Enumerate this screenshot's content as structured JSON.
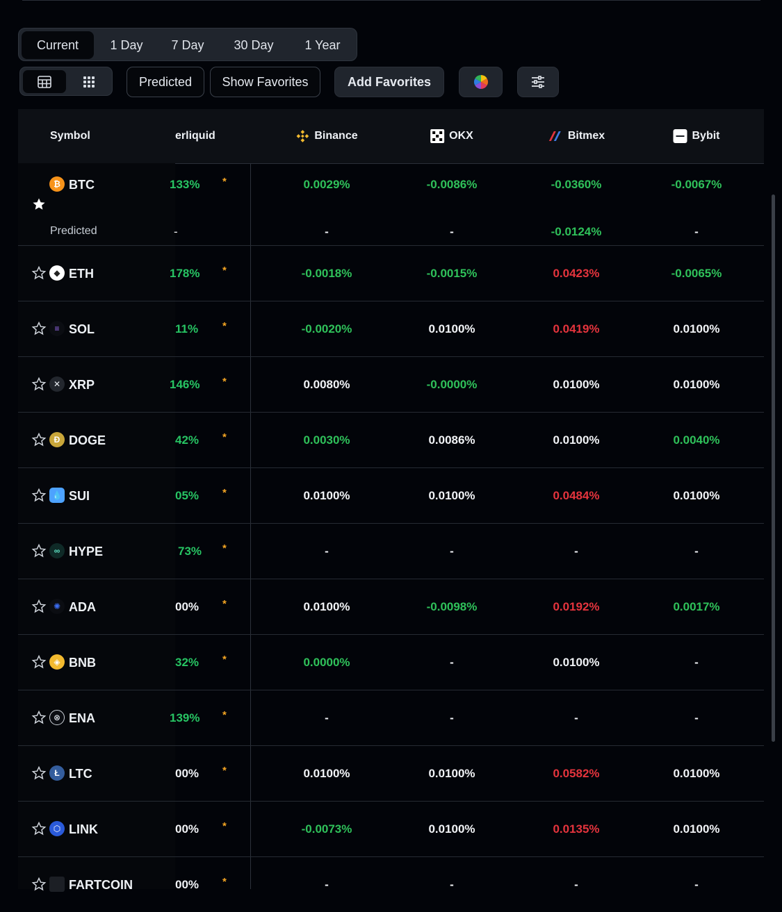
{
  "period_tabs": [
    "Current",
    "1 Day",
    "7 Day",
    "30 Day",
    "1 Year"
  ],
  "toolbar": {
    "predicted": "Predicted",
    "show_favorites": "Show Favorites",
    "add_favorites": "Add Favorites"
  },
  "table": {
    "symbol_header": "Symbol",
    "clipped_header": "erliquid",
    "exchanges": [
      "Binance",
      "OKX",
      "Bitmex",
      "Bybit"
    ],
    "predicted_label": "Predicted",
    "rows": [
      {
        "symbol": "BTC",
        "hl": "133%",
        "binance": "0.0029%",
        "okx": "-0.0086%",
        "bitmex": "-0.0360%",
        "bybit": "-0.0067%",
        "pred": {
          "hl": "-",
          "binance": "-",
          "okx": "-",
          "bitmex": "-0.0124%",
          "bybit": "-"
        }
      },
      {
        "symbol": "ETH",
        "hl": "178%",
        "binance": "-0.0018%",
        "okx": "-0.0015%",
        "bitmex": "0.0423%",
        "bybit": "-0.0065%"
      },
      {
        "symbol": "SOL",
        "hl": "11%",
        "binance": "-0.0020%",
        "okx": "0.0100%",
        "bitmex": "0.0419%",
        "bybit": "0.0100%"
      },
      {
        "symbol": "XRP",
        "hl": "146%",
        "binance": "0.0080%",
        "okx": "-0.0000%",
        "bitmex": "0.0100%",
        "bybit": "0.0100%"
      },
      {
        "symbol": "DOGE",
        "hl": "42%",
        "binance": "0.0030%",
        "okx": "0.0086%",
        "bitmex": "0.0100%",
        "bybit": "0.0040%"
      },
      {
        "symbol": "SUI",
        "hl": "05%",
        "binance": "0.0100%",
        "okx": "0.0100%",
        "bitmex": "0.0484%",
        "bybit": "0.0100%"
      },
      {
        "symbol": "HYPE",
        "hl": "73%",
        "binance": "-",
        "okx": "-",
        "bitmex": "-",
        "bybit": "-"
      },
      {
        "symbol": "ADA",
        "hl": "00%",
        "binance": "0.0100%",
        "okx": "-0.0098%",
        "bitmex": "0.0192%",
        "bybit": "0.0017%"
      },
      {
        "symbol": "BNB",
        "hl": "32%",
        "binance": "0.0000%",
        "okx": "-",
        "bitmex": "0.0100%",
        "bybit": "-"
      },
      {
        "symbol": "ENA",
        "hl": "139%",
        "binance": "-",
        "okx": "-",
        "bitmex": "-",
        "bybit": "-"
      },
      {
        "symbol": "LTC",
        "hl": "00%",
        "binance": "0.0100%",
        "okx": "0.0100%",
        "bitmex": "0.0582%",
        "bybit": "0.0100%"
      },
      {
        "symbol": "LINK",
        "hl": "00%",
        "binance": "-0.0073%",
        "okx": "0.0100%",
        "bitmex": "0.0135%",
        "bybit": "0.0100%"
      },
      {
        "symbol": "FARTCOIN",
        "hl": "00%",
        "binance": "-",
        "okx": "-",
        "bitmex": "-",
        "bybit": "-"
      }
    ]
  },
  "colors": {
    "positive": "#2fc15a",
    "negative": "#e5343d",
    "neutral": "#f1f3f6",
    "accent": "#f5a623"
  }
}
